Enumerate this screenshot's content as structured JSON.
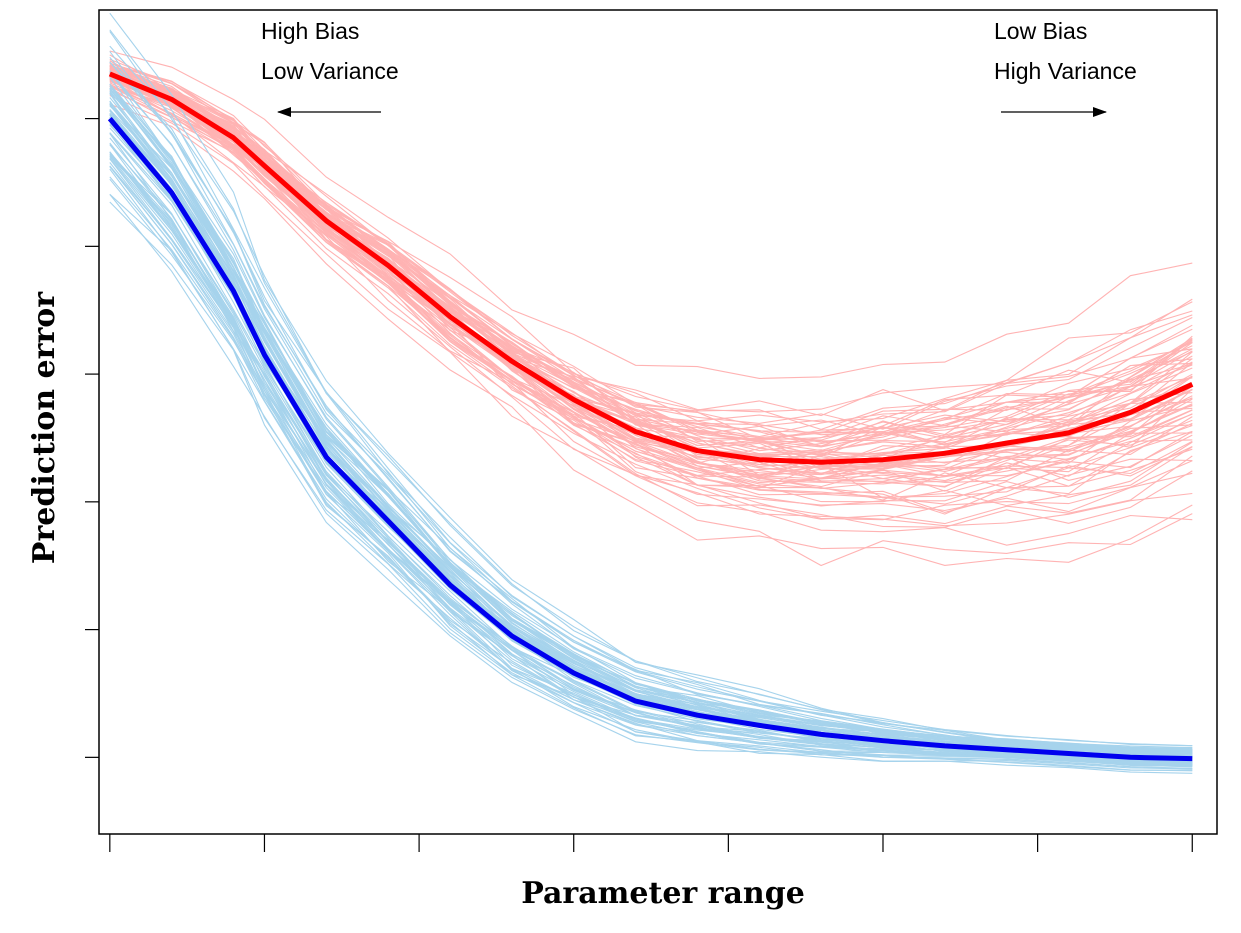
{
  "chart_data": {
    "type": "line",
    "title": "",
    "xlabel": "Parameter range",
    "ylabel": "Prediction error",
    "xlim": [
      0.93,
      8.16
    ],
    "ylim": [
      0.6,
      7.05
    ],
    "x": [
      1,
      1.4,
      1.8,
      2.0,
      2.4,
      2.8,
      3.2,
      3.6,
      4.0,
      4.4,
      4.8,
      5.2,
      5.6,
      6.0,
      6.4,
      6.8,
      7.2,
      7.6,
      8.0
    ],
    "x_ticks_count": 8,
    "y_ticks_count": 7,
    "grid": false,
    "legend": "none",
    "tick_labels_shown": false,
    "series": [
      {
        "role": "test-error-mean",
        "color": "#ff0000",
        "values": [
          6.55,
          6.35,
          6.05,
          5.83,
          5.4,
          5.05,
          4.65,
          4.3,
          4.0,
          3.75,
          3.6,
          3.53,
          3.51,
          3.53,
          3.58,
          3.66,
          3.74,
          3.9,
          4.12
        ]
      },
      {
        "role": "training-error-mean",
        "color": "#0000ee",
        "values": [
          6.2,
          5.62,
          4.85,
          4.35,
          3.55,
          3.05,
          2.55,
          2.15,
          1.86,
          1.64,
          1.53,
          1.45,
          1.38,
          1.33,
          1.29,
          1.26,
          1.23,
          1.2,
          1.19
        ]
      }
    ],
    "replicates": {
      "count": 80,
      "test_color": "#ffb3b3",
      "train_color": "#a6d3ec"
    },
    "annotations": {
      "left_line1": "High Bias",
      "left_line2": "Low Variance",
      "right_line1": "Low Bias",
      "right_line2": "High Variance"
    }
  }
}
